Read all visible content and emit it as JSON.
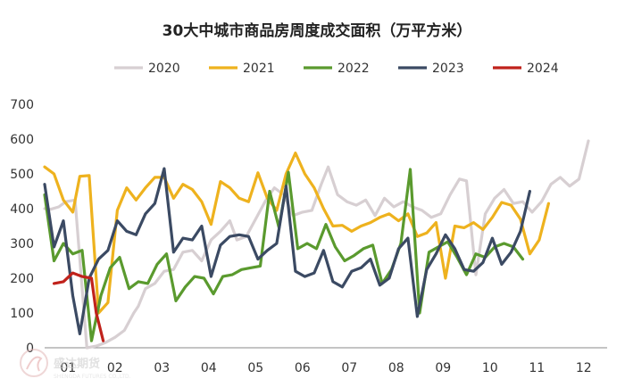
{
  "chart_data": {
    "type": "line",
    "title": "30大中城市商品房周度成交面积（万平方米）",
    "xlabel": "",
    "ylabel": "",
    "ylim": [
      0,
      700
    ],
    "yticks": [
      0,
      100,
      200,
      300,
      400,
      500,
      600,
      700
    ],
    "xlim": [
      1,
      13
    ],
    "x_ticks": [
      "01",
      "02",
      "03",
      "04",
      "05",
      "06",
      "07",
      "08",
      "09",
      "10",
      "11",
      "12"
    ],
    "grid": false,
    "legend_position": "top",
    "series": [
      {
        "name": "2020",
        "color": "#d7cfd2",
        "points": [
          [
            1.0,
            400
          ],
          [
            1.12,
            398
          ],
          [
            1.3,
            405
          ],
          [
            1.45,
            420
          ],
          [
            1.65,
            425
          ],
          [
            1.9,
            0
          ],
          [
            2.1,
            5
          ],
          [
            2.3,
            15
          ],
          [
            2.5,
            30
          ],
          [
            2.7,
            50
          ],
          [
            2.9,
            100
          ],
          [
            3.0,
            120
          ],
          [
            3.15,
            170
          ],
          [
            3.35,
            185
          ],
          [
            3.55,
            220
          ],
          [
            3.75,
            225
          ],
          [
            3.95,
            275
          ],
          [
            4.15,
            280
          ],
          [
            4.35,
            250
          ],
          [
            4.55,
            310
          ],
          [
            4.75,
            335
          ],
          [
            4.95,
            365
          ],
          [
            5.1,
            310
          ],
          [
            5.3,
            320
          ],
          [
            5.5,
            370
          ],
          [
            5.7,
            420
          ],
          [
            5.9,
            460
          ],
          [
            6.1,
            440
          ],
          [
            6.3,
            380
          ],
          [
            6.5,
            390
          ],
          [
            6.7,
            395
          ],
          [
            6.9,
            470
          ],
          [
            7.05,
            520
          ],
          [
            7.25,
            440
          ],
          [
            7.45,
            420
          ],
          [
            7.65,
            410
          ],
          [
            7.85,
            425
          ],
          [
            8.05,
            380
          ],
          [
            8.25,
            430
          ],
          [
            8.45,
            405
          ],
          [
            8.65,
            420
          ],
          [
            8.85,
            405
          ],
          [
            9.05,
            395
          ],
          [
            9.25,
            375
          ],
          [
            9.45,
            385
          ],
          [
            9.65,
            440
          ],
          [
            9.85,
            485
          ],
          [
            10.0,
            480
          ],
          [
            10.2,
            210
          ],
          [
            10.4,
            385
          ],
          [
            10.6,
            430
          ],
          [
            10.8,
            455
          ],
          [
            11.0,
            415
          ],
          [
            11.2,
            420
          ],
          [
            11.4,
            390
          ],
          [
            11.6,
            420
          ],
          [
            11.8,
            470
          ],
          [
            12.0,
            490
          ],
          [
            12.2,
            465
          ],
          [
            12.4,
            485
          ],
          [
            12.6,
            595
          ]
        ]
      },
      {
        "name": "2021",
        "color": "#eeb21e",
        "points": [
          [
            1.0,
            520
          ],
          [
            1.2,
            500
          ],
          [
            1.4,
            425
          ],
          [
            1.6,
            390
          ],
          [
            1.75,
            493
          ],
          [
            1.95,
            495
          ],
          [
            2.15,
            100
          ],
          [
            2.35,
            130
          ],
          [
            2.55,
            395
          ],
          [
            2.75,
            460
          ],
          [
            2.95,
            425
          ],
          [
            3.15,
            460
          ],
          [
            3.35,
            490
          ],
          [
            3.55,
            490
          ],
          [
            3.75,
            430
          ],
          [
            3.95,
            470
          ],
          [
            4.15,
            455
          ],
          [
            4.35,
            420
          ],
          [
            4.55,
            355
          ],
          [
            4.75,
            478
          ],
          [
            4.95,
            460
          ],
          [
            5.15,
            430
          ],
          [
            5.35,
            420
          ],
          [
            5.55,
            503
          ],
          [
            5.75,
            430
          ],
          [
            5.95,
            395
          ],
          [
            6.15,
            500
          ],
          [
            6.35,
            560
          ],
          [
            6.55,
            500
          ],
          [
            6.75,
            460
          ],
          [
            6.95,
            400
          ],
          [
            7.15,
            350
          ],
          [
            7.35,
            352
          ],
          [
            7.55,
            335
          ],
          [
            7.75,
            350
          ],
          [
            7.95,
            360
          ],
          [
            8.15,
            375
          ],
          [
            8.35,
            385
          ],
          [
            8.55,
            365
          ],
          [
            8.75,
            385
          ],
          [
            8.95,
            320
          ],
          [
            9.15,
            330
          ],
          [
            9.35,
            360
          ],
          [
            9.55,
            200
          ],
          [
            9.75,
            350
          ],
          [
            9.95,
            345
          ],
          [
            10.15,
            360
          ],
          [
            10.35,
            340
          ],
          [
            10.55,
            375
          ],
          [
            10.75,
            418
          ],
          [
            10.95,
            410
          ],
          [
            11.15,
            370
          ],
          [
            11.35,
            270
          ],
          [
            11.55,
            310
          ],
          [
            11.75,
            415
          ]
        ]
      },
      {
        "name": "2022",
        "color": "#5a9a2e",
        "points": [
          [
            1.0,
            440
          ],
          [
            1.2,
            250
          ],
          [
            1.4,
            300
          ],
          [
            1.6,
            270
          ],
          [
            1.8,
            280
          ],
          [
            2.0,
            20
          ],
          [
            2.2,
            150
          ],
          [
            2.4,
            230
          ],
          [
            2.6,
            260
          ],
          [
            2.8,
            170
          ],
          [
            3.0,
            190
          ],
          [
            3.2,
            185
          ],
          [
            3.4,
            240
          ],
          [
            3.6,
            270
          ],
          [
            3.8,
            135
          ],
          [
            4.0,
            175
          ],
          [
            4.2,
            205
          ],
          [
            4.4,
            200
          ],
          [
            4.6,
            155
          ],
          [
            4.8,
            205
          ],
          [
            5.0,
            210
          ],
          [
            5.2,
            225
          ],
          [
            5.4,
            230
          ],
          [
            5.6,
            235
          ],
          [
            5.8,
            450
          ],
          [
            6.0,
            345
          ],
          [
            6.2,
            505
          ],
          [
            6.4,
            285
          ],
          [
            6.6,
            300
          ],
          [
            6.8,
            285
          ],
          [
            7.0,
            355
          ],
          [
            7.2,
            290
          ],
          [
            7.4,
            250
          ],
          [
            7.6,
            265
          ],
          [
            7.8,
            285
          ],
          [
            8.0,
            295
          ],
          [
            8.2,
            185
          ],
          [
            8.4,
            225
          ],
          [
            8.6,
            300
          ],
          [
            8.8,
            513
          ],
          [
            9.0,
            100
          ],
          [
            9.2,
            275
          ],
          [
            9.4,
            290
          ],
          [
            9.6,
            305
          ],
          [
            9.8,
            260
          ],
          [
            10.0,
            210
          ],
          [
            10.2,
            270
          ],
          [
            10.4,
            260
          ],
          [
            10.6,
            290
          ],
          [
            10.8,
            300
          ],
          [
            11.0,
            290
          ],
          [
            11.2,
            255
          ]
        ]
      },
      {
        "name": "2023",
        "color": "#3b4a63",
        "points": [
          [
            1.0,
            470
          ],
          [
            1.2,
            290
          ],
          [
            1.4,
            365
          ],
          [
            1.6,
            150
          ],
          [
            1.75,
            40
          ],
          [
            1.95,
            200
          ],
          [
            2.15,
            255
          ],
          [
            2.35,
            280
          ],
          [
            2.55,
            365
          ],
          [
            2.75,
            335
          ],
          [
            2.95,
            325
          ],
          [
            3.15,
            385
          ],
          [
            3.35,
            415
          ],
          [
            3.55,
            515
          ],
          [
            3.75,
            275
          ],
          [
            3.95,
            315
          ],
          [
            4.15,
            310
          ],
          [
            4.35,
            350
          ],
          [
            4.55,
            205
          ],
          [
            4.75,
            295
          ],
          [
            4.95,
            320
          ],
          [
            5.15,
            325
          ],
          [
            5.35,
            320
          ],
          [
            5.55,
            255
          ],
          [
            5.75,
            280
          ],
          [
            5.95,
            300
          ],
          [
            6.15,
            465
          ],
          [
            6.35,
            220
          ],
          [
            6.55,
            205
          ],
          [
            6.75,
            215
          ],
          [
            6.95,
            280
          ],
          [
            7.15,
            190
          ],
          [
            7.35,
            175
          ],
          [
            7.55,
            220
          ],
          [
            7.75,
            230
          ],
          [
            7.95,
            255
          ],
          [
            8.15,
            180
          ],
          [
            8.35,
            200
          ],
          [
            8.55,
            285
          ],
          [
            8.75,
            315
          ],
          [
            8.95,
            90
          ],
          [
            9.15,
            225
          ],
          [
            9.35,
            270
          ],
          [
            9.55,
            325
          ],
          [
            9.75,
            285
          ],
          [
            9.95,
            225
          ],
          [
            10.15,
            220
          ],
          [
            10.35,
            245
          ],
          [
            10.55,
            315
          ],
          [
            10.75,
            240
          ],
          [
            10.95,
            275
          ],
          [
            11.15,
            335
          ],
          [
            11.35,
            450
          ]
        ]
      },
      {
        "name": "2024",
        "color": "#c0221b",
        "points": [
          [
            1.2,
            185
          ],
          [
            1.4,
            190
          ],
          [
            1.6,
            215
          ],
          [
            1.8,
            205
          ],
          [
            2.0,
            200
          ],
          [
            2.1,
            100
          ],
          [
            2.25,
            20
          ]
        ]
      }
    ]
  }
}
